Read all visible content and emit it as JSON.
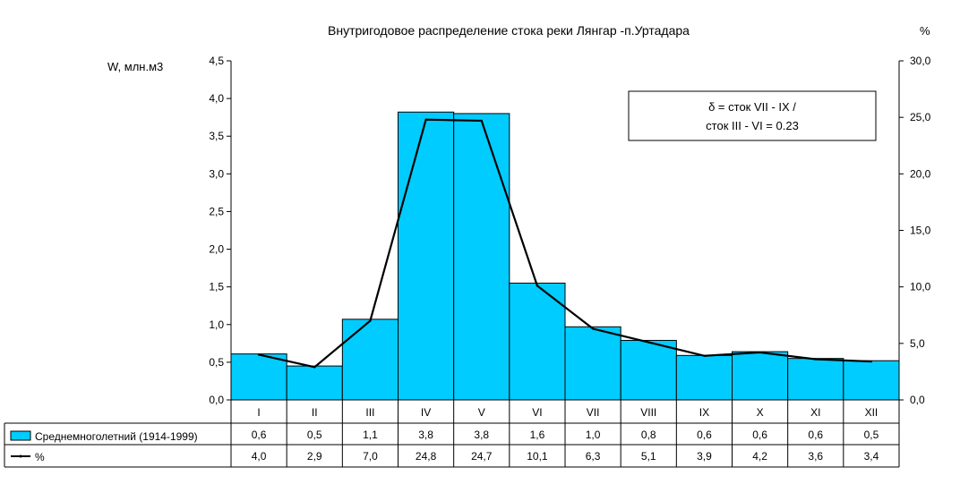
{
  "chart_data": {
    "type": "bar",
    "title": "Внутригодовое распределение стока реки Лянгар -п.Уртадара",
    "ylabel": "W, млн.м3",
    "y2label": "%",
    "ylim": [
      0,
      4.5
    ],
    "y2lim": [
      0,
      30
    ],
    "yticks": [
      "0,0",
      "0,5",
      "1,0",
      "1,5",
      "2,0",
      "2,5",
      "3,0",
      "3,5",
      "4,0",
      "4,5"
    ],
    "y2ticks": [
      "0,0",
      "5,0",
      "10,0",
      "15,0",
      "20,0",
      "25,0",
      "30,0"
    ],
    "categories": [
      "I",
      "II",
      "III",
      "IV",
      "V",
      "VI",
      "VII",
      "VIII",
      "IX",
      "X",
      "XI",
      "XII"
    ],
    "grid": false,
    "series": [
      {
        "name": "Среднемноголетний (1914-1999)",
        "type": "bar",
        "axis": "left",
        "color": "#00CCFF",
        "values": [
          0.61,
          0.45,
          1.07,
          3.82,
          3.8,
          1.55,
          0.97,
          0.79,
          0.59,
          0.64,
          0.55,
          0.52
        ],
        "labels": [
          "0,6",
          "0,5",
          "1,1",
          "3,8",
          "3,8",
          "1,6",
          "1,0",
          "0,8",
          "0,6",
          "0,6",
          "0,6",
          "0,5"
        ]
      },
      {
        "name": "%",
        "type": "line",
        "axis": "right",
        "color": "#000000",
        "values": [
          4.0,
          2.9,
          7.0,
          24.8,
          24.7,
          10.1,
          6.3,
          5.1,
          3.9,
          4.2,
          3.6,
          3.4
        ],
        "labels": [
          "4,0",
          "2,9",
          "7,0",
          "24,8",
          "24,7",
          "10,1",
          "6,3",
          "5,1",
          "3,9",
          "4,2",
          "3,6",
          "3,4"
        ]
      }
    ],
    "annotation": [
      "δ = сток VII - IX /",
      "сток III - VI = 0.23"
    ]
  }
}
